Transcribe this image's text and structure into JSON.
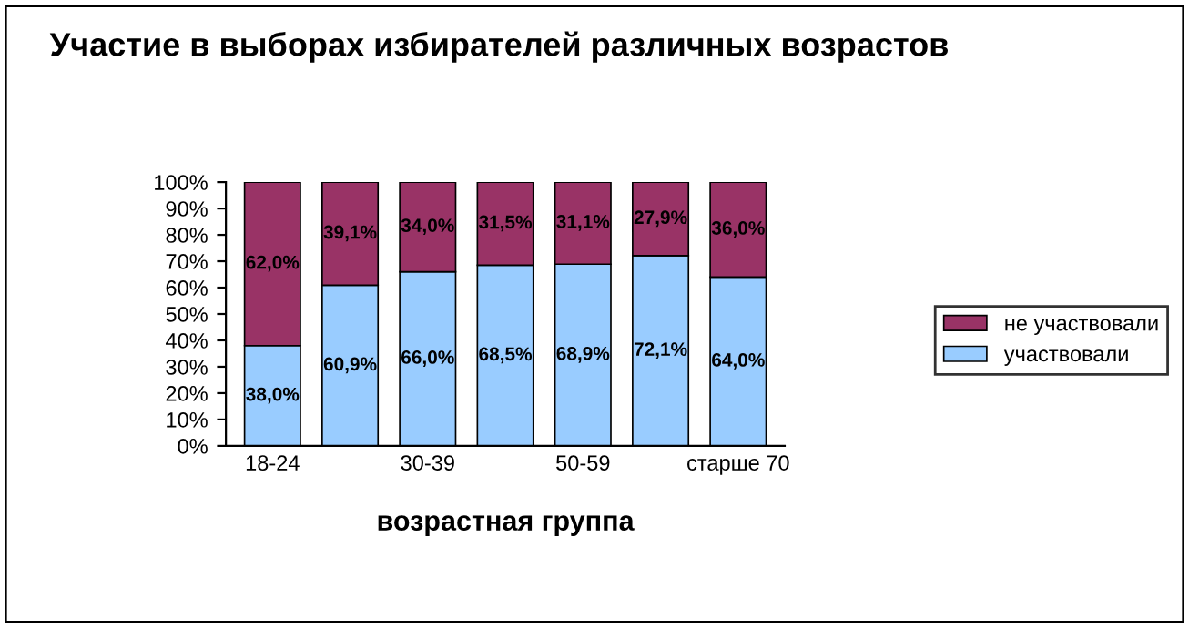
{
  "chart_data": {
    "type": "bar",
    "stacked": true,
    "title": "Участие в выборах избирателей различных возрастов",
    "xlabel": "возрастная группа",
    "categories": [
      "18-24",
      null,
      "30-39",
      null,
      "50-59",
      null,
      "старше 70"
    ],
    "series": [
      {
        "name": "участвовали",
        "color": "#99ccff",
        "values": [
          38.0,
          60.9,
          66.0,
          68.5,
          68.9,
          72.1,
          64.0
        ],
        "value_labels": [
          "38,0%",
          "60,9%",
          "66,0%",
          "68,5%",
          "68,9%",
          "72,1%",
          "64,0%"
        ]
      },
      {
        "name": "не участвовали",
        "color": "#993366",
        "values": [
          62.0,
          39.1,
          34.0,
          31.5,
          31.1,
          27.9,
          36.0
        ],
        "value_labels": [
          "62,0%",
          "39,1%",
          "34,0%",
          "31,5%",
          "31,1%",
          "27,9%",
          "36,0%"
        ]
      }
    ],
    "ylim": [
      0,
      100
    ],
    "yticks": [
      {
        "value": 0,
        "label": "0%"
      },
      {
        "value": 10,
        "label": "10%"
      },
      {
        "value": 20,
        "label": "20%"
      },
      {
        "value": 30,
        "label": "30%"
      },
      {
        "value": 40,
        "label": "40%"
      },
      {
        "value": 50,
        "label": "50%"
      },
      {
        "value": 60,
        "label": "60%"
      },
      {
        "value": 70,
        "label": "70%"
      },
      {
        "value": 80,
        "label": "80%"
      },
      {
        "value": 90,
        "label": "90%"
      },
      {
        "value": 100,
        "label": "100%"
      }
    ],
    "legend": "right"
  }
}
